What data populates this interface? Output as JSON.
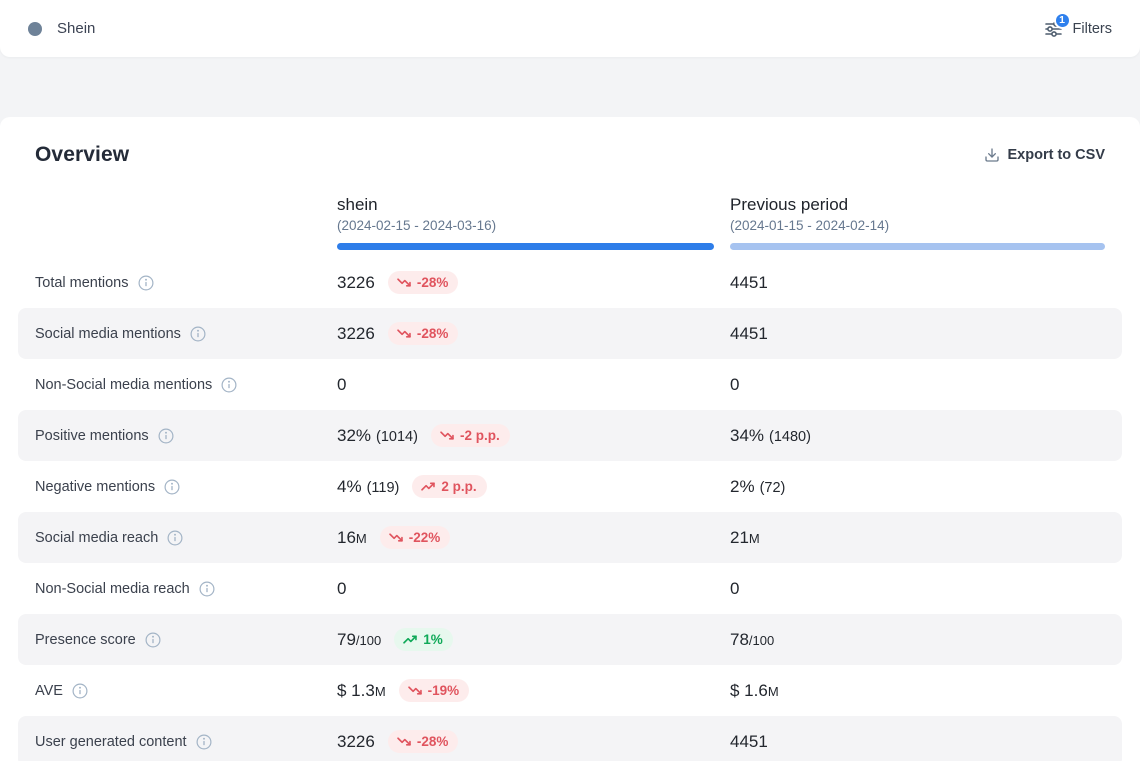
{
  "topbar": {
    "project_name": "Shein",
    "project_dot_color": "#6e8298",
    "filters_label": "Filters",
    "filters_badge_count": "1",
    "filters_badge_color": "#2f80ed"
  },
  "overview": {
    "title": "Overview",
    "export_label": "Export to CSV"
  },
  "table": {
    "columns": [
      {
        "name": "shein",
        "date_range": "(2024-02-15 - 2024-03-16)",
        "bar_color": "#2e7de9"
      },
      {
        "name": "Previous period",
        "date_range": "(2024-01-15 - 2024-02-14)",
        "bar_color": "#a6c3f0"
      }
    ],
    "rows": [
      {
        "label": "Total mentions",
        "current": {
          "main": "3226",
          "badge": {
            "text": "-28%",
            "trend": "down",
            "tone": "red"
          }
        },
        "previous": {
          "main": "4451"
        }
      },
      {
        "label": "Social media mentions",
        "current": {
          "main": "3226",
          "badge": {
            "text": "-28%",
            "trend": "down",
            "tone": "red"
          }
        },
        "previous": {
          "main": "4451"
        }
      },
      {
        "label": "Non-Social media mentions",
        "current": {
          "main": "0"
        },
        "previous": {
          "main": "0"
        }
      },
      {
        "label": "Positive mentions",
        "current": {
          "main": "32%",
          "paren": "(1014)",
          "badge": {
            "text": "-2 p.p.",
            "trend": "down",
            "tone": "red"
          }
        },
        "previous": {
          "main": "34%",
          "paren": "(1480)"
        }
      },
      {
        "label": "Negative mentions",
        "current": {
          "main": "4%",
          "paren": "(119)",
          "badge": {
            "text": "2 p.p.",
            "trend": "up",
            "tone": "red"
          }
        },
        "previous": {
          "main": "2%",
          "paren": "(72)"
        }
      },
      {
        "label": "Social media reach",
        "current": {
          "main": "16",
          "suffix": "M",
          "badge": {
            "text": "-22%",
            "trend": "down",
            "tone": "red"
          }
        },
        "previous": {
          "main": "21",
          "suffix": "M"
        }
      },
      {
        "label": "Non-Social media reach",
        "current": {
          "main": "0"
        },
        "previous": {
          "main": "0"
        }
      },
      {
        "label": "Presence score",
        "current": {
          "main": "79",
          "suffix": "/100",
          "badge": {
            "text": "1%",
            "trend": "up",
            "tone": "green"
          }
        },
        "previous": {
          "main": "78",
          "suffix": "/100"
        }
      },
      {
        "label": "AVE",
        "current": {
          "main": "$ 1.3",
          "suffix": "M",
          "badge": {
            "text": "-19%",
            "trend": "down",
            "tone": "red"
          }
        },
        "previous": {
          "main": "$ 1.6",
          "suffix": "M"
        }
      },
      {
        "label": "User generated content",
        "current": {
          "main": "3226",
          "badge": {
            "text": "-28%",
            "trend": "down",
            "tone": "red"
          }
        },
        "previous": {
          "main": "4451"
        }
      }
    ]
  },
  "colors": {
    "badge_red_bg": "#fdecec",
    "badge_red_text": "#e0545e",
    "badge_green_bg": "#e7f8ee",
    "badge_green_text": "#0fa958",
    "row_alt_bg": "#f4f4f6"
  }
}
